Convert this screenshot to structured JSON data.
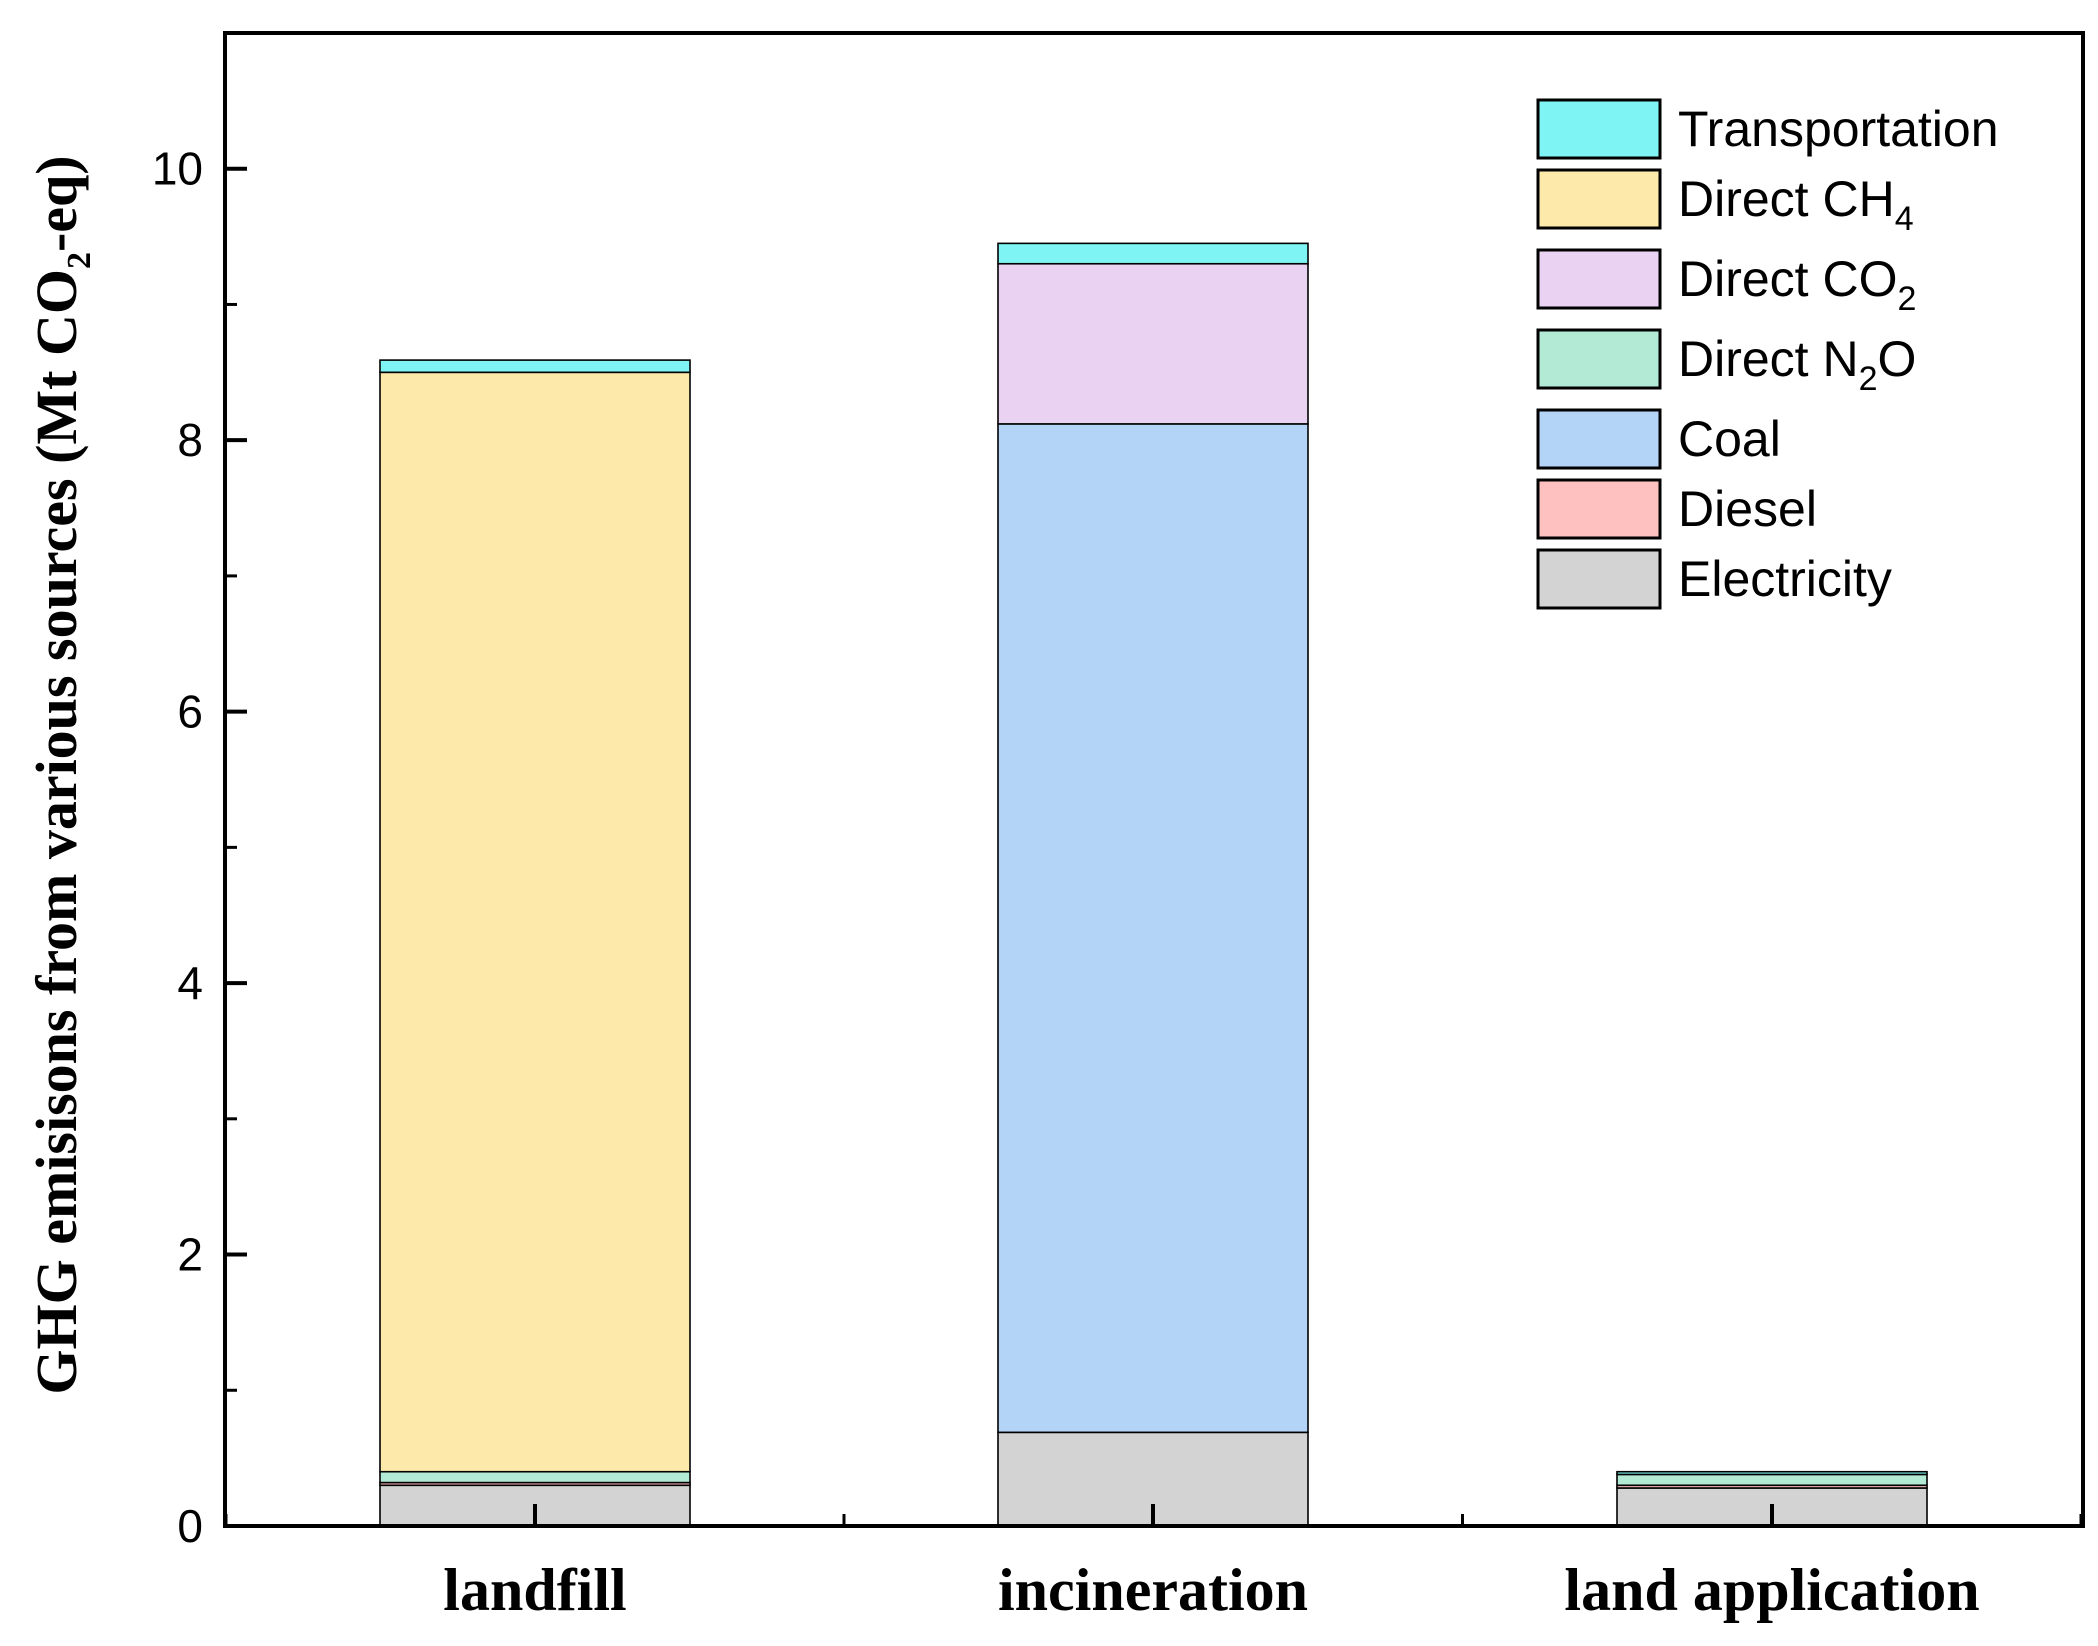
{
  "chart_data": {
    "type": "bar",
    "stacked": true,
    "title": "",
    "xlabel": "",
    "ylabel": {
      "prefix": "GHG emisisons from various sources (Mt CO",
      "sub": "2",
      "suffix": "-eq)"
    },
    "ylim": [
      0,
      11
    ],
    "yticks": [
      "0",
      "2",
      "4",
      "6",
      "8",
      "10"
    ],
    "grid": false,
    "legend_position": "top-right",
    "categories": [
      "landfill",
      "incineration",
      "land application"
    ],
    "series": [
      {
        "name": "Electricity",
        "label": {
          "base": "Electricity",
          "sub": "",
          "tail": ""
        },
        "color": "#d3d3d3",
        "values": [
          0.3,
          0.69,
          0.28
        ]
      },
      {
        "name": "Diesel",
        "label": {
          "base": "Diesel",
          "sub": "",
          "tail": ""
        },
        "color": "#ffc0c0",
        "values": [
          0.02,
          0.0,
          0.02
        ]
      },
      {
        "name": "Coal",
        "label": {
          "base": "Coal",
          "sub": "",
          "tail": ""
        },
        "color": "#b3d4f7",
        "values": [
          0.0,
          7.43,
          0.0
        ]
      },
      {
        "name": "Direct N2O",
        "label": {
          "base": "Direct N",
          "sub": "2",
          "tail": "O"
        },
        "color": "#b3ead6",
        "values": [
          0.08,
          0.0,
          0.08
        ]
      },
      {
        "name": "Direct CO2",
        "label": {
          "base": "Direct CO",
          "sub": "2",
          "tail": ""
        },
        "color": "#ead2f3",
        "values": [
          0.0,
          1.18,
          0.0
        ]
      },
      {
        "name": "Direct CH4",
        "label": {
          "base": "Direct CH",
          "sub": "4",
          "tail": ""
        },
        "color": "#fde9aa",
        "values": [
          8.1,
          0.0,
          0.0
        ]
      },
      {
        "name": "Transportation",
        "label": {
          "base": "Transportation",
          "sub": "",
          "tail": ""
        },
        "color": "#7ff4f4",
        "values": [
          0.09,
          0.15,
          0.02
        ]
      }
    ]
  }
}
